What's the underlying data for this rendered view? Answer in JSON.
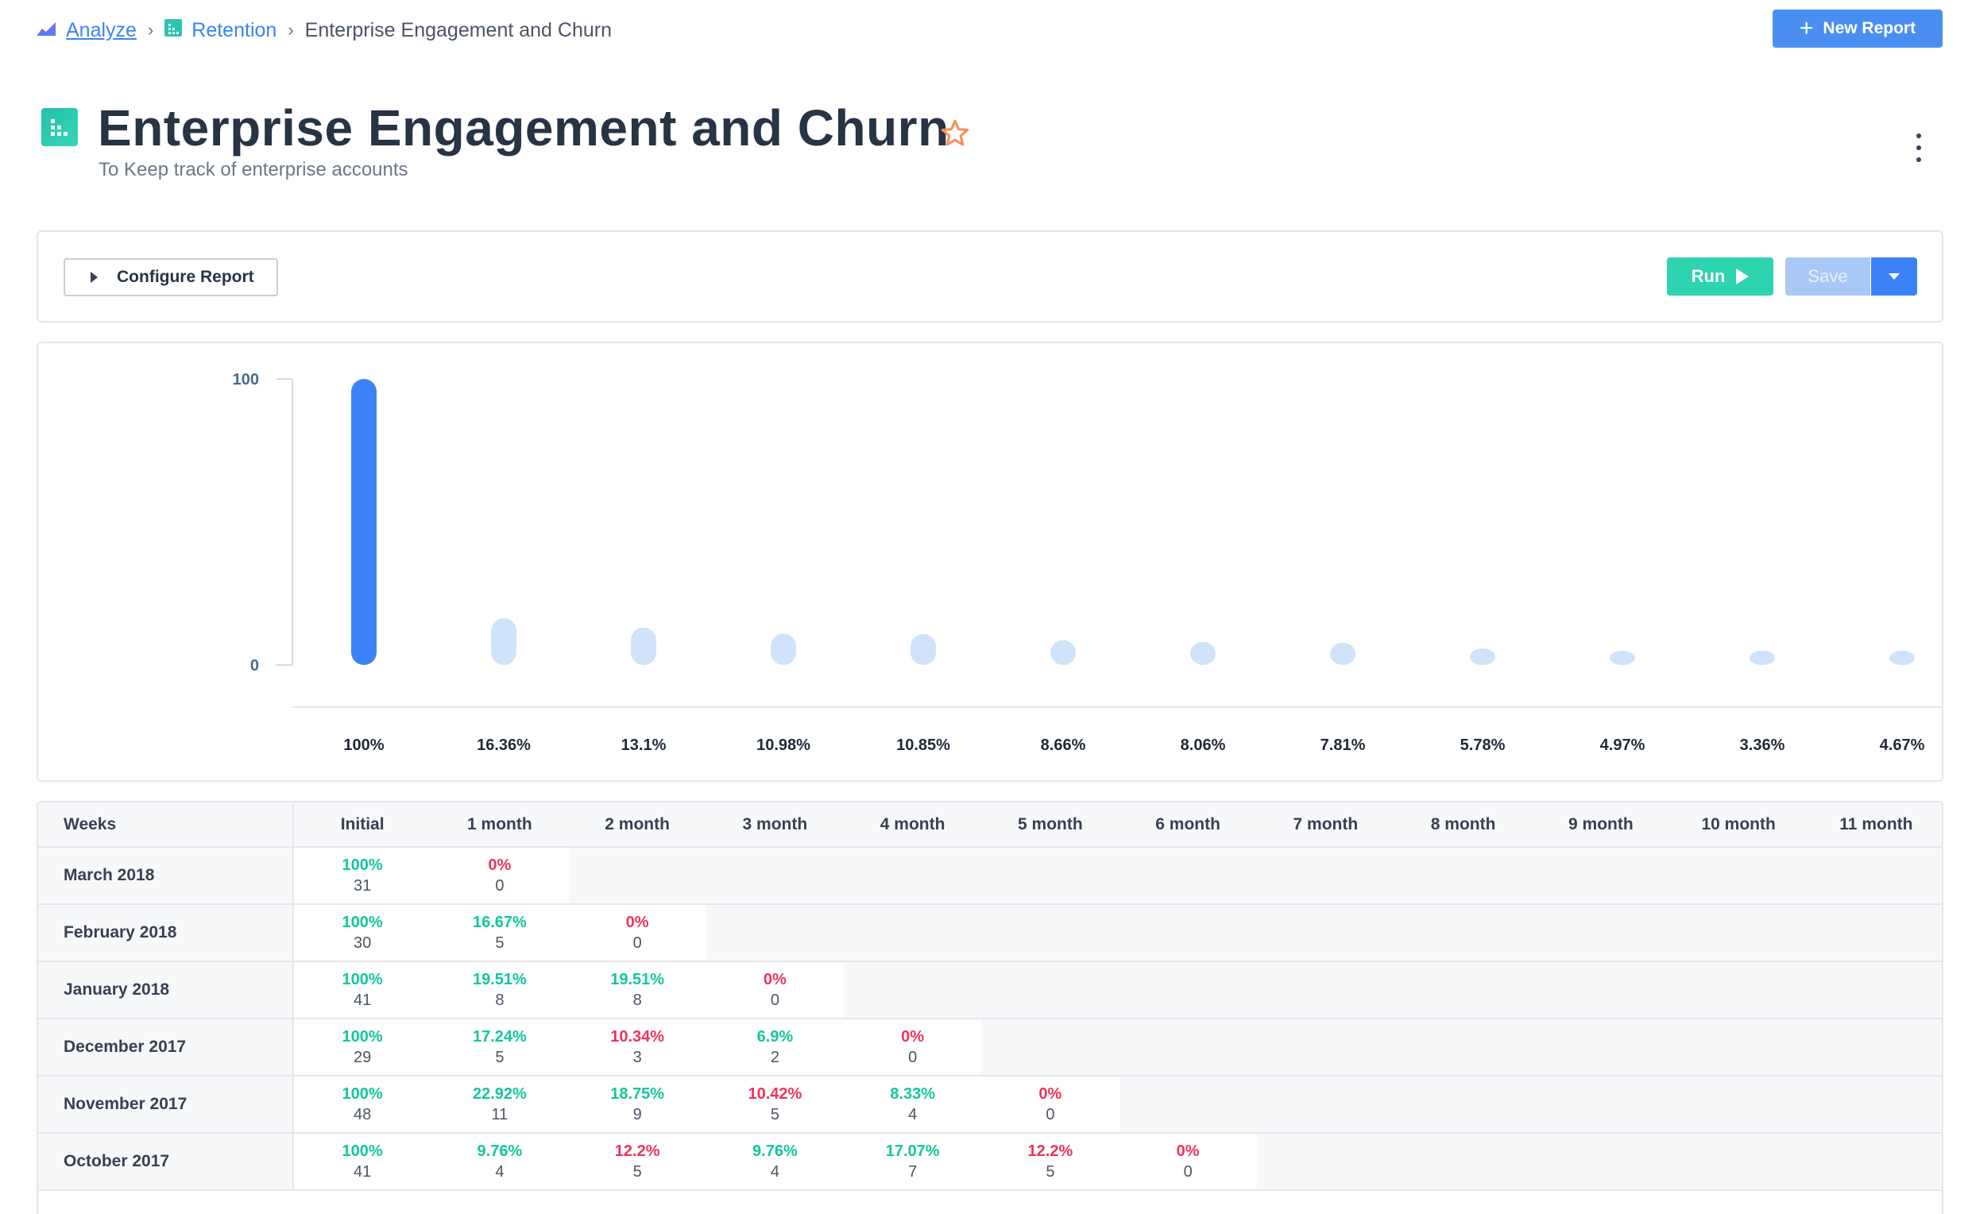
{
  "breadcrumb": {
    "analyze": "Analyze",
    "retention": "Retention",
    "current": "Enterprise Engagement and Churn"
  },
  "header": {
    "new_report_label": "New Report",
    "title": "Enterprise Engagement and Churn",
    "subtitle": "To Keep track of enterprise accounts"
  },
  "toolbar": {
    "configure_label": "Configure Report",
    "run_label": "Run",
    "save_label": "Save"
  },
  "colors": {
    "accent": "#3b82f6",
    "run": "#2ed3b0",
    "positive": "#12c89a",
    "negative": "#f0325a",
    "bar_primary": "#3b82f6",
    "bar_secondary": "#cfe3fb"
  },
  "chart_data": {
    "type": "bar",
    "categories": [
      "Initial",
      "1 month",
      "2 month",
      "3 month",
      "4 month",
      "5 month",
      "6 month",
      "7 month",
      "8 month",
      "9 month",
      "10 month",
      "11 month"
    ],
    "values": [
      100,
      16.36,
      13.1,
      10.98,
      10.85,
      8.66,
      8.06,
      7.81,
      5.78,
      4.97,
      3.36,
      4.67
    ],
    "value_labels": [
      "100%",
      "16.36%",
      "13.1%",
      "10.98%",
      "10.85%",
      "8.66%",
      "8.06%",
      "7.81%",
      "5.78%",
      "4.97%",
      "3.36%",
      "4.67%"
    ],
    "yticks": [
      "100",
      "0"
    ],
    "ylim": [
      0,
      100
    ],
    "grid": false
  },
  "table": {
    "first_header": "Weeks",
    "columns": [
      "Initial",
      "1 month",
      "2 month",
      "3 month",
      "4 month",
      "5 month",
      "6 month",
      "7 month",
      "8 month",
      "9 month",
      "10 month",
      "11 month"
    ],
    "rows": [
      {
        "label": "March 2018",
        "cells": [
          {
            "pct": "100%",
            "count": "31",
            "tone": "good"
          },
          {
            "pct": "0%",
            "count": "0",
            "tone": "bad"
          }
        ]
      },
      {
        "label": "February 2018",
        "cells": [
          {
            "pct": "100%",
            "count": "30",
            "tone": "good"
          },
          {
            "pct": "16.67%",
            "count": "5",
            "tone": "good"
          },
          {
            "pct": "0%",
            "count": "0",
            "tone": "bad"
          }
        ]
      },
      {
        "label": "January 2018",
        "cells": [
          {
            "pct": "100%",
            "count": "41",
            "tone": "good"
          },
          {
            "pct": "19.51%",
            "count": "8",
            "tone": "good"
          },
          {
            "pct": "19.51%",
            "count": "8",
            "tone": "good"
          },
          {
            "pct": "0%",
            "count": "0",
            "tone": "bad"
          }
        ]
      },
      {
        "label": "December 2017",
        "cells": [
          {
            "pct": "100%",
            "count": "29",
            "tone": "good"
          },
          {
            "pct": "17.24%",
            "count": "5",
            "tone": "good"
          },
          {
            "pct": "10.34%",
            "count": "3",
            "tone": "bad"
          },
          {
            "pct": "6.9%",
            "count": "2",
            "tone": "good"
          },
          {
            "pct": "0%",
            "count": "0",
            "tone": "bad"
          }
        ]
      },
      {
        "label": "November 2017",
        "cells": [
          {
            "pct": "100%",
            "count": "48",
            "tone": "good"
          },
          {
            "pct": "22.92%",
            "count": "11",
            "tone": "good"
          },
          {
            "pct": "18.75%",
            "count": "9",
            "tone": "good"
          },
          {
            "pct": "10.42%",
            "count": "5",
            "tone": "bad"
          },
          {
            "pct": "8.33%",
            "count": "4",
            "tone": "good"
          },
          {
            "pct": "0%",
            "count": "0",
            "tone": "bad"
          }
        ]
      },
      {
        "label": "October 2017",
        "cells": [
          {
            "pct": "100%",
            "count": "41",
            "tone": "good"
          },
          {
            "pct": "9.76%",
            "count": "4",
            "tone": "good"
          },
          {
            "pct": "12.2%",
            "count": "5",
            "tone": "bad"
          },
          {
            "pct": "9.76%",
            "count": "4",
            "tone": "good"
          },
          {
            "pct": "17.07%",
            "count": "7",
            "tone": "good"
          },
          {
            "pct": "12.2%",
            "count": "5",
            "tone": "bad"
          },
          {
            "pct": "0%",
            "count": "0",
            "tone": "bad"
          }
        ]
      }
    ]
  }
}
